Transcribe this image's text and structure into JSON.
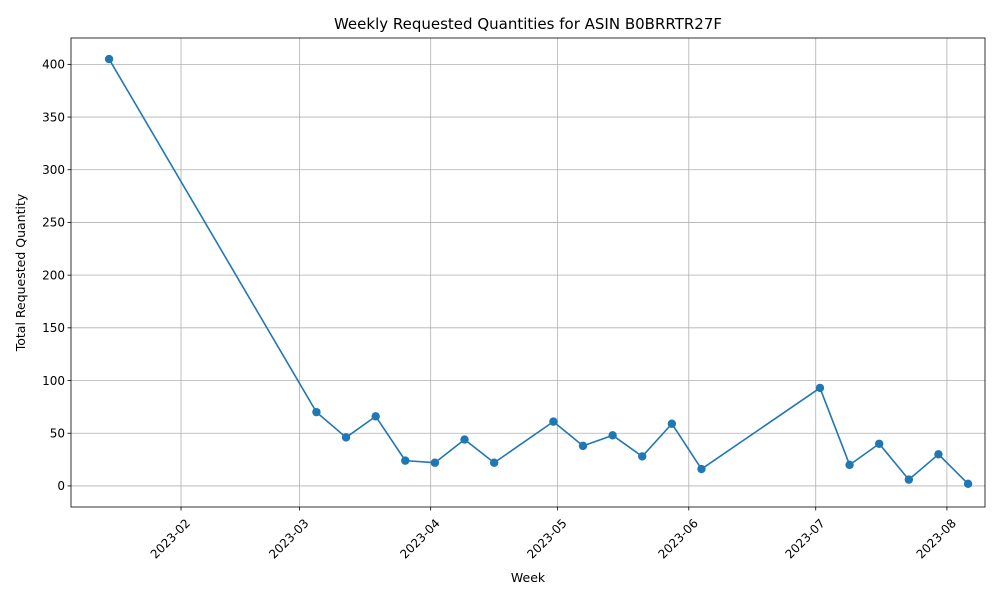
{
  "chart_data": {
    "type": "line",
    "title": "Weekly Requested Quantities for ASIN B0BRRTR27F",
    "xlabel": "Week",
    "ylabel": "Total Requested Quantity",
    "grid": true,
    "line_color": "#1f77b4",
    "marker": "circle",
    "ylim": [
      -20,
      425
    ],
    "xlim": [
      "2023-01-06",
      "2023-08-10"
    ],
    "y_ticks": [
      0,
      50,
      100,
      150,
      200,
      250,
      300,
      350,
      400
    ],
    "x_ticks": [
      "2023-02",
      "2023-03",
      "2023-04",
      "2023-05",
      "2023-06",
      "2023-07",
      "2023-08"
    ],
    "x_tick_dates": [
      "2023-02-01",
      "2023-03-01",
      "2023-04-01",
      "2023-05-01",
      "2023-06-01",
      "2023-07-01",
      "2023-08-01"
    ],
    "series": [
      {
        "x": [
          "2023-01-15",
          "2023-03-05",
          "2023-03-12",
          "2023-03-19",
          "2023-03-26",
          "2023-04-02",
          "2023-04-09",
          "2023-04-16",
          "2023-04-30",
          "2023-05-07",
          "2023-05-14",
          "2023-05-21",
          "2023-05-28",
          "2023-06-04",
          "2023-07-02",
          "2023-07-09",
          "2023-07-16",
          "2023-07-23",
          "2023-07-30",
          "2023-08-06"
        ],
        "values": [
          405,
          70,
          46,
          66,
          24,
          22,
          44,
          22,
          61,
          38,
          48,
          28,
          59,
          16,
          93,
          20,
          40,
          6,
          30,
          2
        ]
      }
    ]
  }
}
